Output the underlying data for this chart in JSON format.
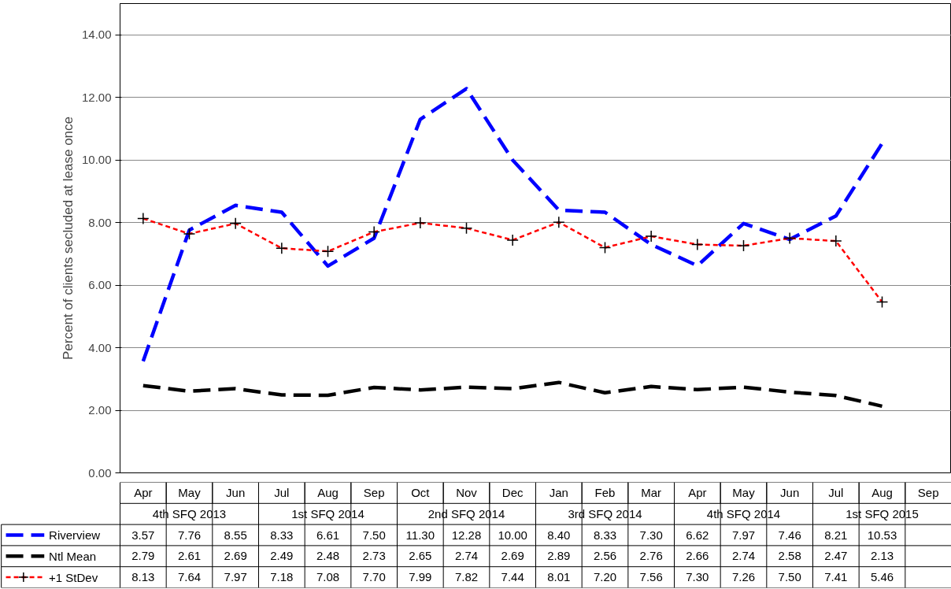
{
  "chart_data": {
    "type": "line",
    "ylabel": "Percent of clients secluded at lease once",
    "categories": [
      "Apr",
      "May",
      "Jun",
      "Jul",
      "Aug",
      "Sep",
      "Oct",
      "Nov",
      "Dec",
      "Jan",
      "Feb",
      "Mar",
      "Apr",
      "May",
      "Jun",
      "Jul",
      "Aug",
      "Sep"
    ],
    "annotations": [
      "4th SFQ 2013",
      "1st SFQ 2014",
      "2nd SFQ 2014",
      "3rd SFQ 2014",
      "4th SFQ 2014",
      "1st SFQ 2015"
    ],
    "ylim": [
      0,
      15
    ],
    "yticks": [
      {
        "value": 0,
        "label": "0.00"
      },
      {
        "value": 2,
        "label": "2.00"
      },
      {
        "value": 4,
        "label": "4.00"
      },
      {
        "value": 6,
        "label": "6.00"
      },
      {
        "value": 8,
        "label": "8.00"
      },
      {
        "value": 10,
        "label": "10.00"
      },
      {
        "value": 12,
        "label": "12.00"
      },
      {
        "value": 14,
        "label": "14.00"
      }
    ],
    "grid": "y",
    "legend": "bottom",
    "line_style": "dashed",
    "series": [
      {
        "name": "Riverview",
        "color": "#0000ff",
        "marker": "none",
        "values": [
          3.57,
          7.76,
          8.55,
          8.33,
          6.61,
          7.5,
          11.3,
          12.28,
          10.0,
          8.4,
          8.33,
          7.3,
          6.62,
          7.97,
          7.46,
          8.21,
          10.53,
          null
        ],
        "value_labels": [
          "3.57",
          "7.76",
          "8.55",
          "8.33",
          "6.61",
          "7.50",
          "11.30",
          "12.28",
          "10.00",
          "8.40",
          "8.33",
          "7.30",
          "6.62",
          "7.97",
          "7.46",
          "8.21",
          "10.53",
          null
        ]
      },
      {
        "name": "Ntl Mean",
        "color": "#000000",
        "marker": "none",
        "values": [
          2.79,
          2.61,
          2.69,
          2.49,
          2.48,
          2.73,
          2.65,
          2.74,
          2.69,
          2.89,
          2.56,
          2.76,
          2.66,
          2.74,
          2.58,
          2.47,
          2.13,
          null
        ],
        "value_labels": [
          "2.79",
          "2.61",
          "2.69",
          "2.49",
          "2.48",
          "2.73",
          "2.65",
          "2.74",
          "2.69",
          "2.89",
          "2.56",
          "2.76",
          "2.66",
          "2.74",
          "2.58",
          "2.47",
          "2.13",
          null
        ]
      },
      {
        "name": "+1 StDev",
        "color": "#ff0000",
        "marker": "cross",
        "values": [
          8.13,
          7.64,
          7.97,
          7.18,
          7.08,
          7.7,
          7.99,
          7.82,
          7.44,
          8.01,
          7.2,
          7.56,
          7.3,
          7.26,
          7.5,
          7.41,
          5.46,
          null
        ],
        "value_labels": [
          "8.13",
          "7.64",
          "7.97",
          "7.18",
          "7.08",
          "7.70",
          "7.99",
          "7.82",
          "7.44",
          "8.01",
          "7.20",
          "7.56",
          "7.30",
          "7.26",
          "7.50",
          "7.41",
          "5.46",
          null
        ]
      }
    ]
  }
}
